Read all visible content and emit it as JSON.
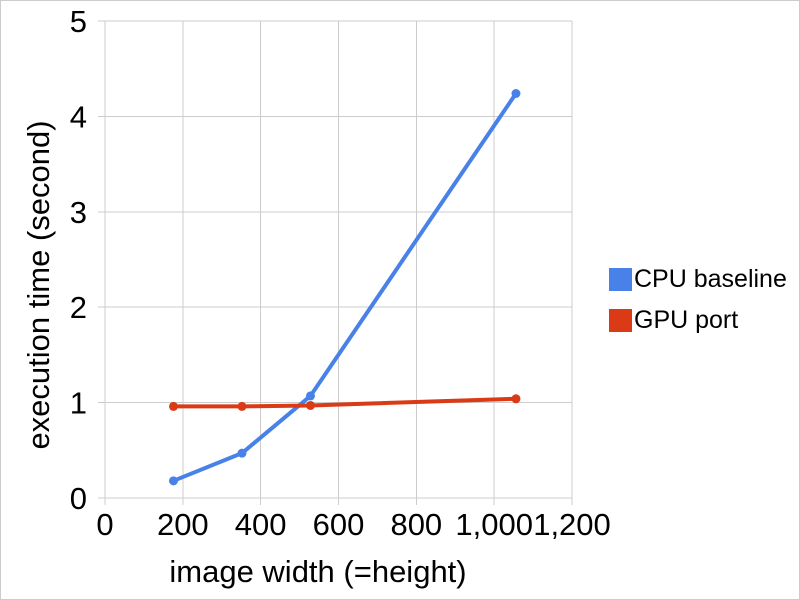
{
  "chart_data": {
    "type": "line",
    "title": "",
    "xlabel": "image width (=height)",
    "ylabel": "execution time (second)",
    "x": [
      176,
      352,
      528,
      1056
    ],
    "series": [
      {
        "name": "CPU baseline",
        "color": "#4881e8",
        "values": [
          0.18,
          0.47,
          1.07,
          4.24
        ]
      },
      {
        "name": "GPU port",
        "color": "#da3a15",
        "values": [
          0.96,
          0.96,
          0.97,
          1.04
        ]
      }
    ],
    "xlim": [
      0,
      1200
    ],
    "ylim": [
      0,
      5
    ],
    "x_ticks": [
      {
        "value": 0,
        "label": "0"
      },
      {
        "value": 200,
        "label": "200"
      },
      {
        "value": 400,
        "label": "400"
      },
      {
        "value": 600,
        "label": "600"
      },
      {
        "value": 800,
        "label": "800"
      },
      {
        "value": 1000,
        "label": "1,000"
      },
      {
        "value": 1200,
        "label": "1,200"
      }
    ],
    "y_ticks": [
      {
        "value": 0,
        "label": "0"
      },
      {
        "value": 1,
        "label": "1"
      },
      {
        "value": 2,
        "label": "2"
      },
      {
        "value": 3,
        "label": "3"
      },
      {
        "value": 4,
        "label": "4"
      },
      {
        "value": 5,
        "label": "5"
      }
    ],
    "grid": true,
    "legend_position": "right",
    "marker": "circle"
  },
  "style": {
    "background": "#ffffff",
    "border_color": "#cccccc",
    "gridline_color": "#cccccc",
    "text_color": "#000000"
  }
}
